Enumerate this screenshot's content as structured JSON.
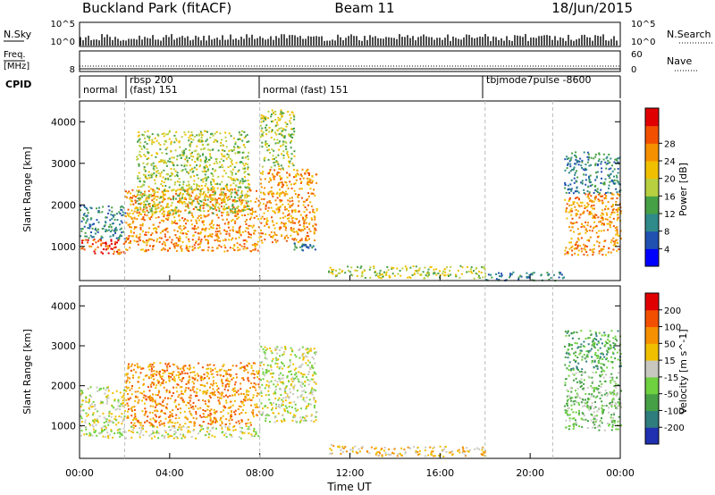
{
  "header": {
    "title": "Buckland Park (fitACF)",
    "beam": "Beam 11",
    "date": "18/Jun/2015"
  },
  "noise_panel": {
    "left_label": "N.Sky",
    "left_ticks": [
      "10^5",
      "10^0"
    ],
    "right_label": "N.Search",
    "right_ticks": [
      "10^5",
      "10^0"
    ]
  },
  "freq_panel": {
    "left_label_1": "Freq.",
    "left_label_2": "[MHz]",
    "left_tick": "8",
    "right_label": "Nave",
    "right_ticks": [
      "60",
      "0"
    ]
  },
  "cpid_panel": {
    "label": "CPID",
    "segments": [
      {
        "label": "normal"
      },
      {
        "label": "rbsp 200"
      },
      {
        "label": "(fast) 151"
      },
      {
        "label": "normal (fast) 151"
      },
      {
        "label": "tbjmode7pulse -8600"
      }
    ]
  },
  "chart_data": [
    {
      "type": "heatmap",
      "panel": "power",
      "ylabel": "Slant Range [km]",
      "xlabel": "",
      "x_ticks": [
        "00:00",
        "04:00",
        "08:00",
        "12:00",
        "16:00",
        "20:00",
        "00:00"
      ],
      "x_range_hours": [
        0,
        24
      ],
      "y_ticks": [
        1000,
        2000,
        3000,
        4000
      ],
      "ylim": [
        180,
        4500
      ],
      "colorbar": {
        "label": "Power [dB]",
        "ticks": [
          "4",
          "8",
          "12",
          "16",
          "20",
          "24",
          "28"
        ],
        "colors": [
          "#0000ff",
          "#2050b0",
          "#2f8a8a",
          "#46a046",
          "#b8d040",
          "#f0c000",
          "#f59000",
          "#f25000",
          "#e00000"
        ]
      },
      "regions": [
        {
          "t0": 0.0,
          "t1": 2.0,
          "r0": 1200,
          "r1": 2000,
          "level": 2
        },
        {
          "t0": 0.0,
          "t1": 2.0,
          "r0": 800,
          "r1": 1200,
          "level": 7
        },
        {
          "t0": 2.0,
          "t1": 8.0,
          "r0": 900,
          "r1": 2400,
          "level": 6
        },
        {
          "t0": 2.5,
          "t1": 7.5,
          "r0": 1800,
          "r1": 3800,
          "level": 4
        },
        {
          "t0": 8.0,
          "t1": 10.5,
          "r0": 1100,
          "r1": 2900,
          "level": 6
        },
        {
          "t0": 8.0,
          "t1": 9.5,
          "r0": 2900,
          "r1": 4300,
          "level": 4
        },
        {
          "t0": 9.5,
          "t1": 10.5,
          "r0": 900,
          "r1": 1200,
          "level": 2
        },
        {
          "t0": 11.0,
          "t1": 12.5,
          "r0": 300,
          "r1": 550,
          "level": 4
        },
        {
          "t0": 12.5,
          "t1": 18.0,
          "r0": 250,
          "r1": 550,
          "level": 4
        },
        {
          "t0": 18.0,
          "t1": 21.5,
          "r0": 200,
          "r1": 400,
          "level": 2
        },
        {
          "t0": 21.5,
          "t1": 24.0,
          "r0": 800,
          "r1": 2300,
          "level": 6
        },
        {
          "t0": 21.5,
          "t1": 24.0,
          "r0": 2300,
          "r1": 3300,
          "level": 2
        }
      ]
    },
    {
      "type": "heatmap",
      "panel": "velocity",
      "ylabel": "Slant Range [km]",
      "xlabel": "Time UT",
      "x_ticks": [
        "00:00",
        "04:00",
        "08:00",
        "12:00",
        "16:00",
        "20:00",
        "00:00"
      ],
      "x_range_hours": [
        0,
        24
      ],
      "y_ticks": [
        1000,
        2000,
        3000,
        4000
      ],
      "ylim": [
        180,
        4500
      ],
      "colorbar": {
        "label": "Velocity [m s^-1]",
        "ticks": [
          "200",
          "100",
          "50",
          "15",
          "-15",
          "-50",
          "-100",
          "-200"
        ],
        "colors": [
          "#2030b0",
          "#2f7d7d",
          "#46a046",
          "#6fd040",
          "#c8c8c0",
          "#f0c000",
          "#f59000",
          "#f25000",
          "#e00000"
        ]
      },
      "regions": [
        {
          "t0": 0.0,
          "t1": 2.0,
          "r0": 700,
          "r1": 2000,
          "level": 4
        },
        {
          "t0": 2.0,
          "t1": 8.0,
          "r0": 1000,
          "r1": 2600,
          "level": 6
        },
        {
          "t0": 2.0,
          "t1": 8.0,
          "r0": 700,
          "r1": 1000,
          "level": 4
        },
        {
          "t0": 8.0,
          "t1": 10.5,
          "r0": 1100,
          "r1": 3000,
          "level": 4
        },
        {
          "t0": 11.0,
          "t1": 12.5,
          "r0": 300,
          "r1": 550,
          "level": 5
        },
        {
          "t0": 12.5,
          "t1": 18.0,
          "r0": 250,
          "r1": 500,
          "level": 5
        },
        {
          "t0": 21.5,
          "t1": 24.0,
          "r0": 900,
          "r1": 2400,
          "level": 3
        },
        {
          "t0": 21.5,
          "t1": 24.0,
          "r0": 2400,
          "r1": 3400,
          "level": 2
        }
      ]
    }
  ]
}
